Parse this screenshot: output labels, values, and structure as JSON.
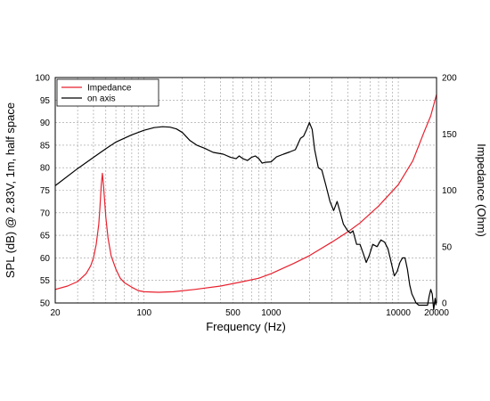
{
  "chart_data": {
    "type": "line",
    "xlabel": "Frequency (Hz)",
    "ylabel_left": "SPL (dB) @ 2.83V, 1m, half space",
    "ylabel_right": "Impedance (Ohm)",
    "x_scale": "log",
    "xlim": [
      20,
      20000
    ],
    "ylim_left": [
      50,
      100
    ],
    "ylim_right": [
      0,
      200
    ],
    "grid": true,
    "legend_position": "top-left",
    "x_tick_labels": [
      {
        "value": 20,
        "label": "20"
      },
      {
        "value": 100,
        "label": "100"
      },
      {
        "value": 500,
        "label": "500"
      },
      {
        "value": 1000,
        "label": "1000"
      },
      {
        "value": 10000,
        "label": "10000"
      },
      {
        "value": 20000,
        "label": "20000"
      }
    ],
    "y_left_ticks": [
      50,
      55,
      60,
      65,
      70,
      75,
      80,
      85,
      90,
      95,
      100
    ],
    "y_right_ticks": [
      0,
      50,
      100,
      150,
      200
    ],
    "series": [
      {
        "name": "Impedance",
        "axis": "right",
        "color": "#e8212e",
        "points": [
          [
            20,
            12
          ],
          [
            25,
            15
          ],
          [
            30,
            19
          ],
          [
            35,
            26
          ],
          [
            38,
            33
          ],
          [
            40,
            40
          ],
          [
            42,
            52
          ],
          [
            44,
            70
          ],
          [
            45,
            85
          ],
          [
            46,
            104
          ],
          [
            47,
            115
          ],
          [
            48,
            104
          ],
          [
            49,
            90
          ],
          [
            50,
            76
          ],
          [
            52,
            58
          ],
          [
            55,
            42
          ],
          [
            60,
            30
          ],
          [
            65,
            22
          ],
          [
            70,
            18
          ],
          [
            80,
            14
          ],
          [
            90,
            11
          ],
          [
            100,
            10
          ],
          [
            130,
            9.5
          ],
          [
            170,
            10
          ],
          [
            250,
            12
          ],
          [
            400,
            15
          ],
          [
            600,
            19
          ],
          [
            800,
            22
          ],
          [
            1000,
            26
          ],
          [
            1500,
            35
          ],
          [
            2000,
            42
          ],
          [
            3000,
            54
          ],
          [
            4000,
            63
          ],
          [
            5000,
            71
          ],
          [
            7000,
            86
          ],
          [
            10000,
            105
          ],
          [
            13000,
            126
          ],
          [
            16000,
            152
          ],
          [
            18000,
            166
          ],
          [
            20000,
            185
          ]
        ]
      },
      {
        "name": "on axis",
        "axis": "left",
        "color": "#000000",
        "points": [
          [
            20,
            76
          ],
          [
            30,
            79.8
          ],
          [
            40,
            82.3
          ],
          [
            50,
            84.2
          ],
          [
            60,
            85.7
          ],
          [
            80,
            87.3
          ],
          [
            100,
            88.3
          ],
          [
            120,
            88.9
          ],
          [
            140,
            89.1
          ],
          [
            160,
            89.0
          ],
          [
            180,
            88.6
          ],
          [
            200,
            87.8
          ],
          [
            230,
            86.0
          ],
          [
            260,
            85.0
          ],
          [
            300,
            84.3
          ],
          [
            350,
            83.4
          ],
          [
            420,
            83.0
          ],
          [
            480,
            82.3
          ],
          [
            530,
            82.0
          ],
          [
            560,
            82.6
          ],
          [
            600,
            82.0
          ],
          [
            650,
            81.6
          ],
          [
            700,
            82.3
          ],
          [
            750,
            82.6
          ],
          [
            800,
            82.0
          ],
          [
            850,
            81.0
          ],
          [
            900,
            81.2
          ],
          [
            1000,
            81.3
          ],
          [
            1100,
            82.4
          ],
          [
            1250,
            83.0
          ],
          [
            1400,
            83.5
          ],
          [
            1550,
            84.0
          ],
          [
            1700,
            86.5
          ],
          [
            1800,
            87.0
          ],
          [
            1900,
            88.5
          ],
          [
            2000,
            90.0
          ],
          [
            2100,
            88.5
          ],
          [
            2200,
            84.0
          ],
          [
            2350,
            80.0
          ],
          [
            2500,
            79.5
          ],
          [
            2700,
            76.0
          ],
          [
            2900,
            72.5
          ],
          [
            3100,
            70.5
          ],
          [
            3300,
            72.5
          ],
          [
            3500,
            70.0
          ],
          [
            3700,
            67.5
          ],
          [
            4000,
            66.0
          ],
          [
            4200,
            65.5
          ],
          [
            4400,
            66.0
          ],
          [
            4700,
            63.0
          ],
          [
            5000,
            63.0
          ],
          [
            5300,
            61.0
          ],
          [
            5600,
            59.0
          ],
          [
            5900,
            60.5
          ],
          [
            6300,
            63.0
          ],
          [
            6800,
            62.5
          ],
          [
            7300,
            64.0
          ],
          [
            7800,
            63.5
          ],
          [
            8300,
            62.0
          ],
          [
            8800,
            59.0
          ],
          [
            9300,
            56.0
          ],
          [
            9800,
            57.0
          ],
          [
            10300,
            59.0
          ],
          [
            10800,
            60.0
          ],
          [
            11300,
            60.0
          ],
          [
            11800,
            57.5
          ],
          [
            12300,
            54.0
          ],
          [
            12800,
            52.0
          ],
          [
            13300,
            51.0
          ],
          [
            13800,
            50.0
          ],
          [
            14500,
            49.5
          ],
          [
            17000,
            49.5
          ],
          [
            17500,
            51.5
          ],
          [
            18000,
            53.0
          ],
          [
            18500,
            52.0
          ],
          [
            19000,
            48.5
          ],
          [
            19500,
            51.0
          ],
          [
            19800,
            49.5
          ]
        ]
      }
    ]
  }
}
